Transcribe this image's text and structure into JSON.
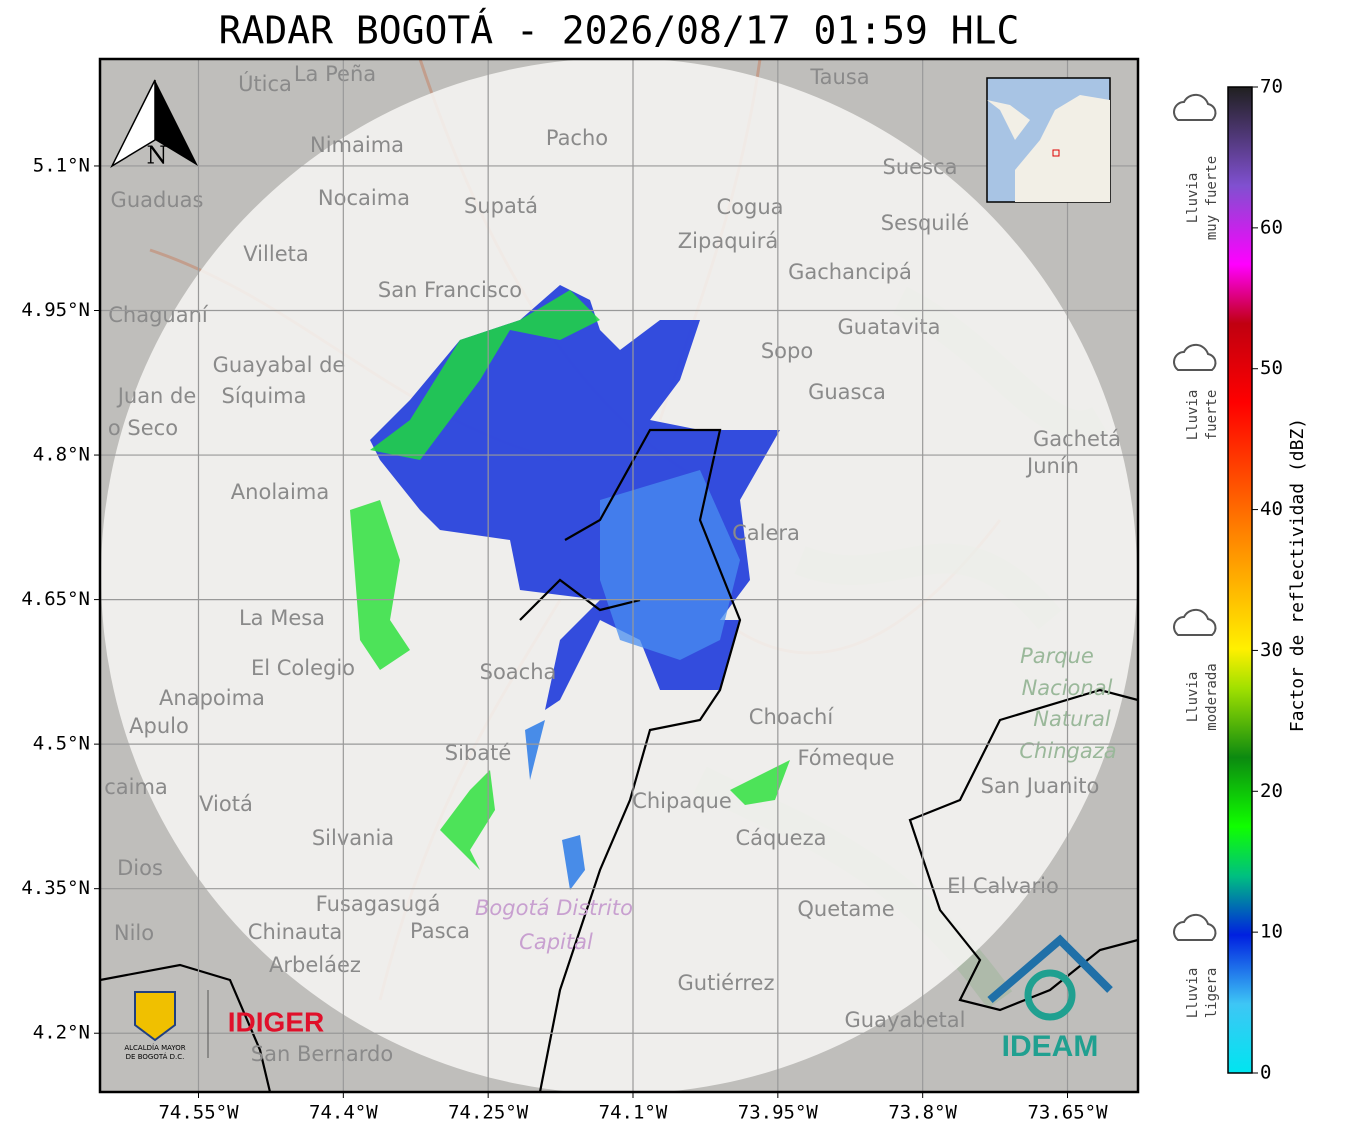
{
  "title": "RADAR BOGOTÁ - 2026/08/17 01:59 HLC",
  "map": {
    "xlim": [
      -74.652,
      -73.577
    ],
    "ylim": [
      4.139,
      5.211
    ],
    "xticks": [
      {
        "value": -74.55,
        "label": "74.55°W"
      },
      {
        "value": -74.4,
        "label": "74.4°W"
      },
      {
        "value": -74.25,
        "label": "74.25°W"
      },
      {
        "value": -74.1,
        "label": "74.1°W"
      },
      {
        "value": -73.95,
        "label": "73.95°W"
      },
      {
        "value": -73.8,
        "label": "73.8°W"
      },
      {
        "value": -73.65,
        "label": "73.65°W"
      }
    ],
    "yticks": [
      {
        "value": 5.1,
        "label": "5.1°N"
      },
      {
        "value": 4.95,
        "label": "4.95°N"
      },
      {
        "value": 4.8,
        "label": "4.8°N"
      },
      {
        "value": 4.65,
        "label": "4.65°N"
      },
      {
        "value": 4.5,
        "label": "4.5°N"
      },
      {
        "value": 4.35,
        "label": "4.35°N"
      },
      {
        "value": 4.2,
        "label": "4.2°N"
      }
    ],
    "grid": true,
    "north": "N",
    "places": [
      "Útica",
      "La Peña",
      "Tausa",
      "Pacho",
      "Nimaima",
      "Suesca",
      "Guaduas",
      "Nocaima",
      "Supatá",
      "Cogua",
      "Sesquilé",
      "Zipaquirá",
      "Villeta",
      "Gachancipá",
      "San Francisco",
      "Chaguaní",
      "Guatavita",
      "Sopo",
      "Guayabal de",
      "Síquima",
      "Guasca",
      "Juan de",
      "o Seco",
      "Gachetá",
      "Junín",
      "Anolaima",
      "Calera",
      "La Mesa",
      "El Colegio",
      "Anapoima",
      "Apulo",
      "Soacha",
      "Choachí",
      "Sibaté",
      "Fómeque",
      "San Juanito",
      "caima",
      "Viotá",
      "Chipaque",
      "Silvania",
      "Cáqueza",
      "Dios",
      "El Calvario",
      "Fusagasugá",
      "Quetame",
      "Nilo",
      "Chinauta",
      "Pasca",
      "Arbeláez",
      "Gutiérrez",
      "Guayabetal",
      "San Bernardo"
    ],
    "park": [
      "Parque",
      "Nacional",
      "Natural",
      "Chingaza"
    ],
    "district": [
      "Bogotá Distrito",
      "Capital"
    ]
  },
  "logos": {
    "idiger": "IDIGER",
    "alcaldia_1": "ALCALDÍA MAYOR",
    "alcaldia_2": "DE BOGOTÁ D.C.",
    "ideam": "IDEAM"
  },
  "colorbar": {
    "label": "Factor de reflectividad (dBZ)",
    "lim": [
      0,
      70
    ],
    "ticks": [
      0,
      10,
      20,
      30,
      40,
      50,
      60,
      70
    ]
  },
  "legend": [
    [
      "Lluvia",
      "muy fuerte"
    ],
    [
      "Lluvia",
      "fuerte"
    ],
    [
      "Lluvia",
      "moderada"
    ],
    [
      "Lluvia",
      "ligera"
    ]
  ]
}
